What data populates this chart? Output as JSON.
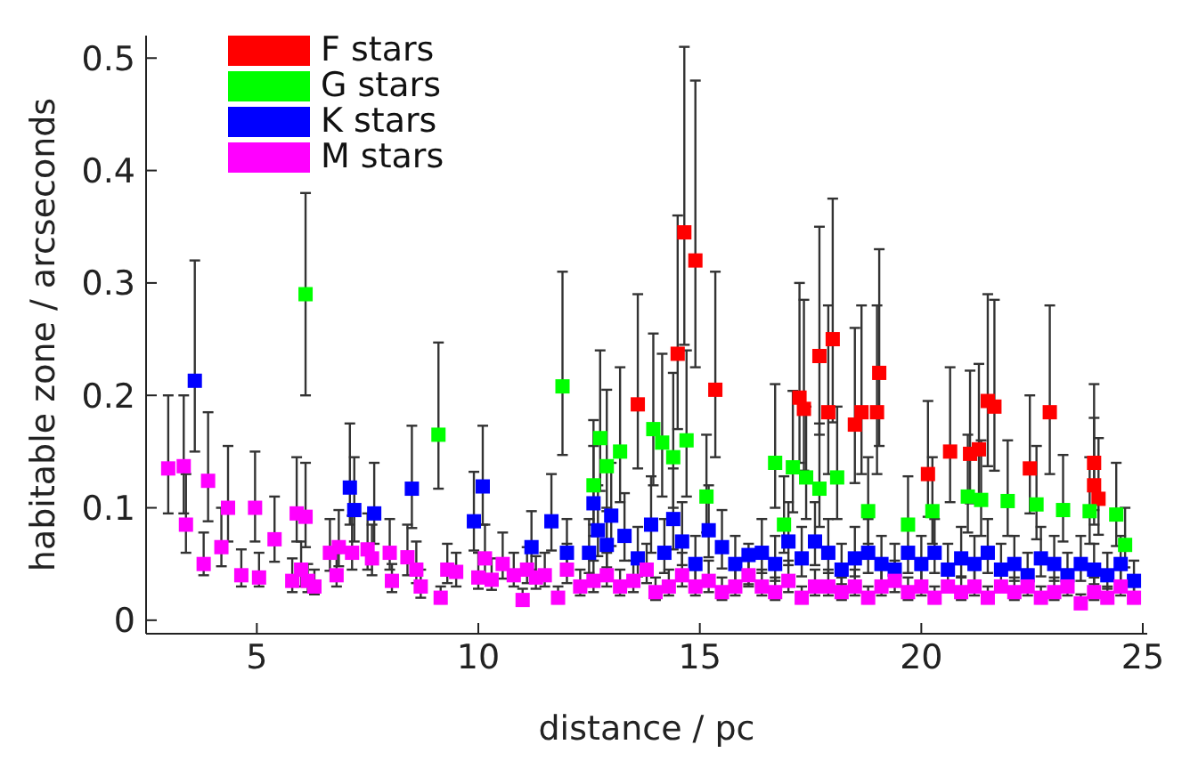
{
  "chart_data": {
    "type": "scatter",
    "xlabel": "distance / pc",
    "ylabel": "habitable zone / arcseconds",
    "xlim": [
      2.5,
      25.1
    ],
    "xticks": [
      5,
      10,
      15,
      20,
      25
    ],
    "ylim": [
      -0.012,
      0.52
    ],
    "yticks": [
      0,
      0.1,
      0.2,
      0.3,
      0.4,
      0.5
    ],
    "grid": false,
    "legend": "top left",
    "marker": "square",
    "series": [
      {
        "name": "F stars",
        "color": "#ff0000",
        "x": [
          13.6,
          14.5,
          14.65,
          14.9,
          15.35,
          17.25,
          17.35,
          17.7,
          17.9,
          18.0,
          18.5,
          18.65,
          19.05,
          19.0,
          20.15,
          20.65,
          21.1,
          21.3,
          21.5,
          21.65,
          22.45,
          22.9,
          23.9,
          23.9,
          24.0
        ],
        "values": [
          0.192,
          0.237,
          0.345,
          0.32,
          0.205,
          0.198,
          0.188,
          0.235,
          0.185,
          0.25,
          0.174,
          0.185,
          0.22,
          0.185,
          0.13,
          0.15,
          0.148,
          0.152,
          0.195,
          0.19,
          0.135,
          0.185,
          0.14,
          0.12,
          0.108
        ],
        "errors": [
          [
            0.135,
            0.29
          ],
          [
            0.17,
            0.36
          ],
          [
            0.245,
            0.51
          ],
          [
            0.225,
            0.48
          ],
          [
            0.145,
            0.31
          ],
          [
            0.14,
            0.3
          ],
          [
            0.133,
            0.285
          ],
          [
            0.165,
            0.35
          ],
          [
            0.13,
            0.28
          ],
          [
            0.176,
            0.375
          ],
          [
            0.122,
            0.26
          ],
          [
            0.13,
            0.28
          ],
          [
            0.155,
            0.33
          ],
          [
            0.13,
            0.28
          ],
          [
            0.092,
            0.195
          ],
          [
            0.105,
            0.225
          ],
          [
            0.104,
            0.222
          ],
          [
            0.107,
            0.228
          ],
          [
            0.137,
            0.29
          ],
          [
            0.133,
            0.285
          ],
          [
            0.095,
            0.2
          ],
          [
            0.13,
            0.28
          ],
          [
            0.098,
            0.21
          ],
          [
            0.085,
            0.18
          ],
          [
            0.076,
            0.162
          ]
        ]
      },
      {
        "name": "G stars",
        "color": "#00ff00",
        "x": [
          6.1,
          9.1,
          11.9,
          12.6,
          12.75,
          12.9,
          13.2,
          13.95,
          14.15,
          14.4,
          14.7,
          15.15,
          16.7,
          16.9,
          17.1,
          17.4,
          17.7,
          18.1,
          18.8,
          19.7,
          20.25,
          21.05,
          21.35,
          21.95,
          22.6,
          23.2,
          23.8,
          24.4,
          24.6
        ],
        "values": [
          0.29,
          0.165,
          0.208,
          0.12,
          0.162,
          0.137,
          0.15,
          0.17,
          0.158,
          0.145,
          0.16,
          0.11,
          0.14,
          0.085,
          0.136,
          0.127,
          0.117,
          0.127,
          0.097,
          0.085,
          0.097,
          0.11,
          0.107,
          0.106,
          0.103,
          0.098,
          0.097,
          0.094,
          0.067
        ],
        "errors": [
          [
            0.2,
            0.38
          ],
          [
            0.117,
            0.247
          ],
          [
            0.147,
            0.31
          ],
          [
            0.085,
            0.178
          ],
          [
            0.115,
            0.24
          ],
          [
            0.097,
            0.205
          ],
          [
            0.105,
            0.225
          ],
          [
            0.12,
            0.255
          ],
          [
            0.11,
            0.237
          ],
          [
            0.1,
            0.22
          ],
          [
            0.11,
            0.24
          ],
          [
            0.078,
            0.165
          ],
          [
            0.1,
            0.21
          ],
          [
            0.06,
            0.128
          ],
          [
            0.096,
            0.204
          ],
          [
            0.09,
            0.19
          ],
          [
            0.083,
            0.175
          ],
          [
            0.09,
            0.19
          ],
          [
            0.068,
            0.145
          ],
          [
            0.085,
            0.128
          ],
          [
            0.068,
            0.145
          ],
          [
            0.078,
            0.165
          ],
          [
            0.075,
            0.16
          ],
          [
            0.075,
            0.16
          ],
          [
            0.072,
            0.155
          ],
          [
            0.07,
            0.147
          ],
          [
            0.068,
            0.145
          ],
          [
            0.066,
            0.14
          ],
          [
            0.047,
            0.1
          ]
        ]
      },
      {
        "name": "K stars",
        "color": "#0000ff",
        "x": [
          3.6,
          7.1,
          7.2,
          7.65,
          8.5,
          9.9,
          10.1,
          11.2,
          11.65,
          12.0,
          12.5,
          12.6,
          12.7,
          12.9,
          13.0,
          13.3,
          13.6,
          13.9,
          14.2,
          14.4,
          14.6,
          14.9,
          15.2,
          15.5,
          15.8,
          16.1,
          16.4,
          16.7,
          17.0,
          17.3,
          17.6,
          17.9,
          18.2,
          18.5,
          18.8,
          19.1,
          19.4,
          19.7,
          20.0,
          20.3,
          20.6,
          20.9,
          21.2,
          21.5,
          21.8,
          22.1,
          22.4,
          22.7,
          23.0,
          23.3,
          23.6,
          23.9,
          24.2,
          24.5,
          24.8
        ],
        "values": [
          0.213,
          0.118,
          0.098,
          0.095,
          0.117,
          0.088,
          0.119,
          0.065,
          0.088,
          0.06,
          0.06,
          0.104,
          0.08,
          0.067,
          0.093,
          0.075,
          0.055,
          0.085,
          0.06,
          0.09,
          0.07,
          0.05,
          0.08,
          0.065,
          0.05,
          0.058,
          0.06,
          0.05,
          0.07,
          0.055,
          0.07,
          0.06,
          0.045,
          0.055,
          0.06,
          0.05,
          0.045,
          0.06,
          0.05,
          0.06,
          0.045,
          0.055,
          0.05,
          0.06,
          0.045,
          0.05,
          0.04,
          0.055,
          0.05,
          0.04,
          0.05,
          0.045,
          0.04,
          0.05,
          0.035
        ],
        "errors": [
          [
            0.15,
            0.32
          ],
          [
            0.085,
            0.175
          ],
          [
            0.07,
            0.145
          ],
          [
            0.068,
            0.14
          ],
          [
            0.082,
            0.173
          ],
          [
            0.062,
            0.132
          ],
          [
            0.085,
            0.173
          ],
          [
            0.045,
            0.097
          ],
          [
            0.062,
            0.13
          ],
          [
            0.042,
            0.09
          ],
          [
            0.042,
            0.09
          ],
          [
            0.075,
            0.155
          ],
          [
            0.057,
            0.12
          ],
          [
            0.047,
            0.1
          ],
          [
            0.066,
            0.14
          ],
          [
            0.053,
            0.113
          ],
          [
            0.039,
            0.083
          ],
          [
            0.06,
            0.128
          ],
          [
            0.042,
            0.09
          ],
          [
            0.063,
            0.135
          ],
          [
            0.049,
            0.105
          ],
          [
            0.035,
            0.075
          ],
          [
            0.056,
            0.12
          ],
          [
            0.046,
            0.098
          ],
          [
            0.035,
            0.075
          ],
          [
            0.032,
            0.068
          ],
          [
            0.042,
            0.09
          ],
          [
            0.035,
            0.075
          ],
          [
            0.049,
            0.105
          ],
          [
            0.039,
            0.083
          ],
          [
            0.049,
            0.105
          ],
          [
            0.042,
            0.09
          ],
          [
            0.032,
            0.068
          ],
          [
            0.039,
            0.083
          ],
          [
            0.042,
            0.09
          ],
          [
            0.035,
            0.075
          ],
          [
            0.032,
            0.068
          ],
          [
            0.042,
            0.09
          ],
          [
            0.035,
            0.075
          ],
          [
            0.042,
            0.09
          ],
          [
            0.032,
            0.068
          ],
          [
            0.039,
            0.083
          ],
          [
            0.035,
            0.075
          ],
          [
            0.042,
            0.09
          ],
          [
            0.032,
            0.068
          ],
          [
            0.035,
            0.075
          ],
          [
            0.028,
            0.06
          ],
          [
            0.039,
            0.083
          ],
          [
            0.035,
            0.075
          ],
          [
            0.028,
            0.06
          ],
          [
            0.035,
            0.075
          ],
          [
            0.032,
            0.068
          ],
          [
            0.028,
            0.06
          ],
          [
            0.035,
            0.075
          ],
          [
            0.025,
            0.053
          ]
        ]
      },
      {
        "name": "M stars",
        "color": "#ff00ff",
        "x": [
          3.0,
          3.35,
          3.4,
          3.8,
          3.9,
          4.2,
          4.35,
          4.65,
          4.96,
          5.05,
          5.4,
          5.8,
          5.9,
          6.0,
          6.1,
          6.15,
          6.3,
          6.65,
          6.8,
          6.85,
          7.15,
          7.5,
          7.6,
          8.0,
          8.05,
          8.4,
          8.6,
          8.7,
          9.15,
          9.3,
          9.5,
          10.0,
          10.15,
          10.3,
          10.55,
          10.8,
          11.0,
          11.1,
          11.3,
          11.5,
          11.8,
          12.0,
          12.3,
          12.6,
          12.9,
          13.2,
          13.5,
          13.8,
          14.0,
          14.3,
          14.6,
          14.9,
          15.2,
          15.5,
          15.8,
          16.1,
          16.4,
          16.7,
          17.0,
          17.3,
          17.6,
          17.9,
          18.2,
          18.5,
          18.8,
          19.1,
          19.4,
          19.7,
          20.0,
          20.3,
          20.6,
          20.9,
          21.2,
          21.5,
          21.8,
          22.1,
          22.4,
          22.7,
          23.0,
          23.3,
          23.6,
          23.9,
          24.2,
          24.5,
          24.8
        ],
        "values": [
          0.135,
          0.137,
          0.085,
          0.05,
          0.124,
          0.065,
          0.1,
          0.04,
          0.1,
          0.038,
          0.072,
          0.035,
          0.095,
          0.045,
          0.092,
          0.035,
          0.03,
          0.06,
          0.04,
          0.065,
          0.06,
          0.063,
          0.055,
          0.06,
          0.035,
          0.056,
          0.045,
          0.03,
          0.02,
          0.045,
          0.043,
          0.038,
          0.055,
          0.036,
          0.05,
          0.04,
          0.018,
          0.045,
          0.038,
          0.04,
          0.02,
          0.045,
          0.03,
          0.035,
          0.04,
          0.03,
          0.035,
          0.045,
          0.025,
          0.03,
          0.04,
          0.03,
          0.035,
          0.025,
          0.03,
          0.04,
          0.03,
          0.025,
          0.035,
          0.02,
          0.03,
          0.03,
          0.025,
          0.03,
          0.02,
          0.03,
          0.035,
          0.025,
          0.03,
          0.02,
          0.03,
          0.025,
          0.03,
          0.02,
          0.03,
          0.025,
          0.03,
          0.02,
          0.025,
          0.03,
          0.015,
          0.025,
          0.02,
          0.03,
          0.02
        ],
        "errors": [
          [
            0.095,
            0.2
          ],
          [
            0.095,
            0.2
          ],
          [
            0.06,
            0.13
          ],
          [
            0.04,
            0.078
          ],
          [
            0.088,
            0.185
          ],
          [
            0.048,
            0.1
          ],
          [
            0.07,
            0.155
          ],
          [
            0.03,
            0.063
          ],
          [
            0.07,
            0.15
          ],
          [
            0.03,
            0.06
          ],
          [
            0.052,
            0.11
          ],
          [
            0.025,
            0.055
          ],
          [
            0.07,
            0.145
          ],
          [
            0.03,
            0.07
          ],
          [
            0.065,
            0.14
          ],
          [
            0.025,
            0.05
          ],
          [
            0.023,
            0.045
          ],
          [
            0.044,
            0.09
          ],
          [
            0.03,
            0.06
          ],
          [
            0.048,
            0.098
          ],
          [
            0.045,
            0.093
          ],
          [
            0.045,
            0.095
          ],
          [
            0.04,
            0.085
          ],
          [
            0.045,
            0.09
          ],
          [
            0.025,
            0.05
          ],
          [
            0.04,
            0.085
          ],
          [
            0.033,
            0.07
          ],
          [
            0.02,
            0.045
          ],
          [
            0.015,
            0.03
          ],
          [
            0.033,
            0.068
          ],
          [
            0.03,
            0.06
          ],
          [
            0.028,
            0.06
          ],
          [
            0.04,
            0.085
          ],
          [
            0.027,
            0.055
          ],
          [
            0.037,
            0.078
          ],
          [
            0.03,
            0.06
          ],
          [
            0.013,
            0.028
          ],
          [
            0.033,
            0.065
          ],
          [
            0.028,
            0.057
          ],
          [
            0.03,
            0.06
          ],
          [
            0.015,
            0.03
          ],
          [
            0.033,
            0.068
          ],
          [
            0.022,
            0.045
          ],
          [
            0.025,
            0.053
          ],
          [
            0.03,
            0.06
          ],
          [
            0.022,
            0.045
          ],
          [
            0.025,
            0.053
          ],
          [
            0.033,
            0.068
          ],
          [
            0.018,
            0.038
          ],
          [
            0.022,
            0.045
          ],
          [
            0.03,
            0.06
          ],
          [
            0.022,
            0.045
          ],
          [
            0.025,
            0.053
          ],
          [
            0.018,
            0.038
          ],
          [
            0.022,
            0.045
          ],
          [
            0.03,
            0.06
          ],
          [
            0.022,
            0.045
          ],
          [
            0.018,
            0.038
          ],
          [
            0.025,
            0.053
          ],
          [
            0.015,
            0.03
          ],
          [
            0.022,
            0.045
          ],
          [
            0.022,
            0.045
          ],
          [
            0.018,
            0.038
          ],
          [
            0.022,
            0.045
          ],
          [
            0.015,
            0.03
          ],
          [
            0.022,
            0.045
          ],
          [
            0.025,
            0.053
          ],
          [
            0.018,
            0.038
          ],
          [
            0.022,
            0.045
          ],
          [
            0.015,
            0.03
          ],
          null,
          [
            0.018,
            0.038
          ],
          [
            0.022,
            0.045
          ],
          [
            0.015,
            0.03
          ],
          null,
          [
            0.018,
            0.038
          ],
          [
            0.022,
            0.045
          ],
          [
            0.015,
            0.03
          ],
          [
            0.018,
            0.038
          ],
          [
            0.022,
            0.045
          ],
          [
            0.011,
            0.023
          ],
          [
            0.018,
            0.038
          ],
          [
            0.015,
            0.03
          ],
          [
            0.022,
            0.045
          ],
          [
            0.015,
            0.03
          ]
        ]
      }
    ]
  }
}
